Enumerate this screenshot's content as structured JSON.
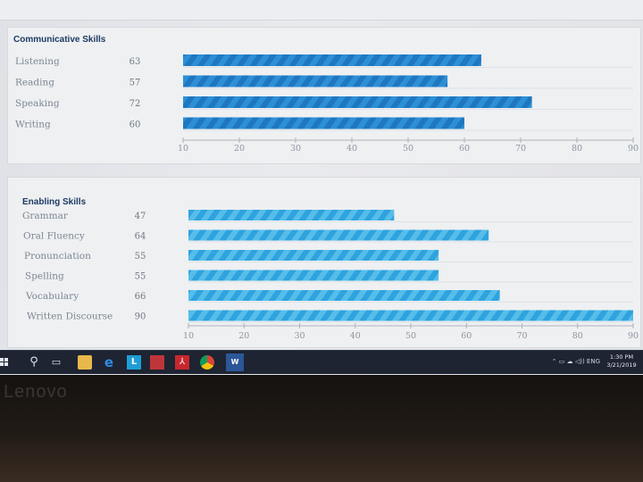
{
  "chart_data": [
    {
      "type": "bar",
      "orientation": "horizontal",
      "title": "Communicative Skills",
      "categories": [
        "Listening",
        "Reading",
        "Speaking",
        "Writing"
      ],
      "values": [
        63,
        57,
        72,
        60
      ],
      "xlim": [
        10,
        90
      ],
      "ticks": [
        10,
        20,
        30,
        40,
        50,
        60,
        70,
        80,
        90
      ],
      "bar_color": "#1f77c0",
      "stripe_color": "#2d8fd6"
    },
    {
      "type": "bar",
      "orientation": "horizontal",
      "title": "Enabling Skills",
      "categories": [
        "Grammar",
        "Oral Fluency",
        "Pronunciation",
        "Spelling",
        "Vocabulary",
        "Written Discourse"
      ],
      "values": [
        47,
        64,
        55,
        55,
        66,
        90
      ],
      "xlim": [
        10,
        90
      ],
      "ticks": [
        10,
        20,
        30,
        40,
        50,
        60,
        70,
        80,
        90
      ],
      "bar_color": "#2ea3de",
      "stripe_color": "#56bdea"
    }
  ],
  "taskbar": {
    "icons": [
      "windows-start-icon",
      "search-icon",
      "task-view-icon",
      "file-explorer-icon",
      "edge-icon",
      "lync-icon",
      "app-red-icon",
      "acrobat-pdf-icon",
      "chrome-icon",
      "word-icon"
    ],
    "lync_letter": "L",
    "pdf_glyph": "⅄",
    "word_letter": "W",
    "tray_text": "ENG",
    "clock_time": "1:30 PM",
    "clock_date": "3/21/2019"
  },
  "bezel": {
    "brand": "Lenovo"
  }
}
